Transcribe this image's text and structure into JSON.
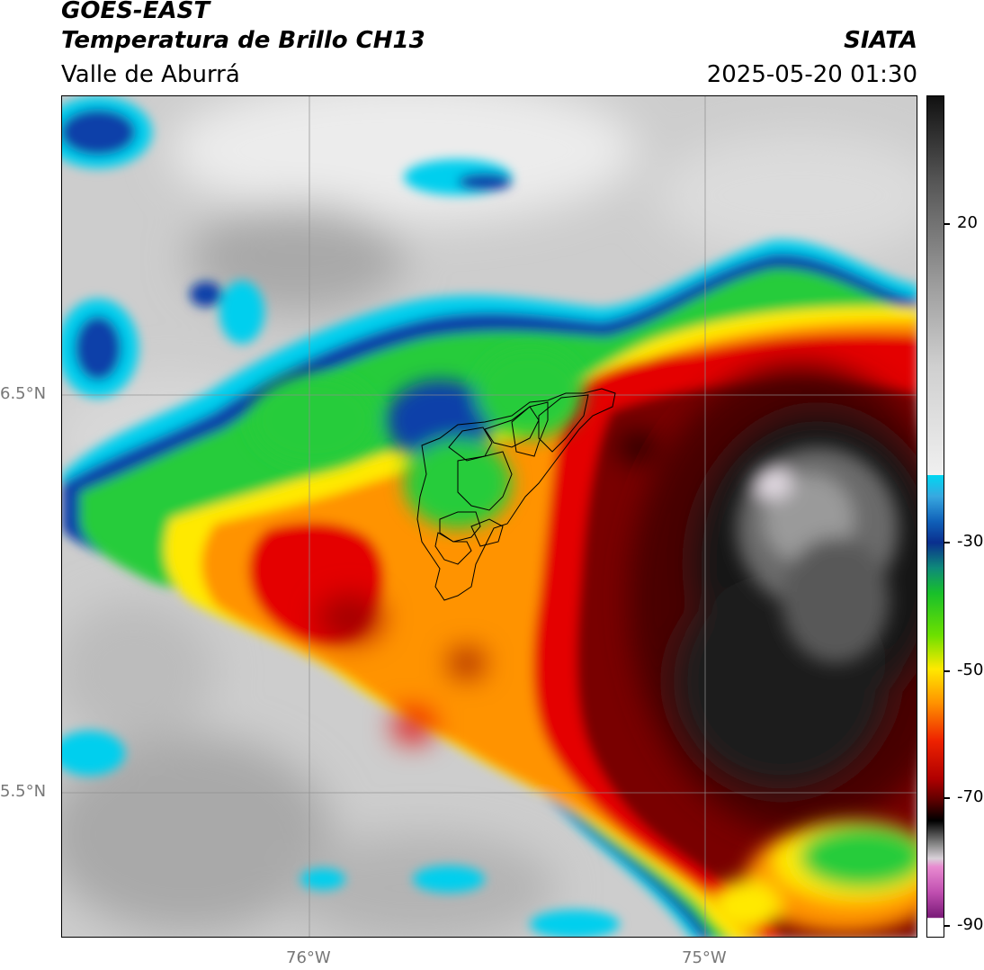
{
  "header": {
    "satellite": "GOES-EAST",
    "product": "Temperatura de Brillo CH13",
    "region": "Valle de Aburrá",
    "brand": "SIATA",
    "timestamp": "2025-05-20 01:30"
  },
  "map": {
    "lat_labels": [
      "6.5°N",
      "5.5°N"
    ],
    "lon_labels": [
      "76°W",
      "75°W"
    ],
    "gridlines": true,
    "colors": {
      "cloud_gray": "#c8c8c8",
      "cyan": "#00d2f0",
      "blue": "#0a3fa8",
      "green": "#2ad12a",
      "yellow": "#ffee00",
      "orange": "#ff8c00",
      "red": "#e00000",
      "dark_red": "#6a0000",
      "black": "#0a0a0a"
    }
  },
  "colorbar": {
    "ticks": [
      "20",
      "-30",
      "-50",
      "-70",
      "-90"
    ],
    "tick_values": [
      20,
      -30,
      -50,
      -70,
      -90
    ],
    "range": [
      -92,
      40
    ]
  }
}
